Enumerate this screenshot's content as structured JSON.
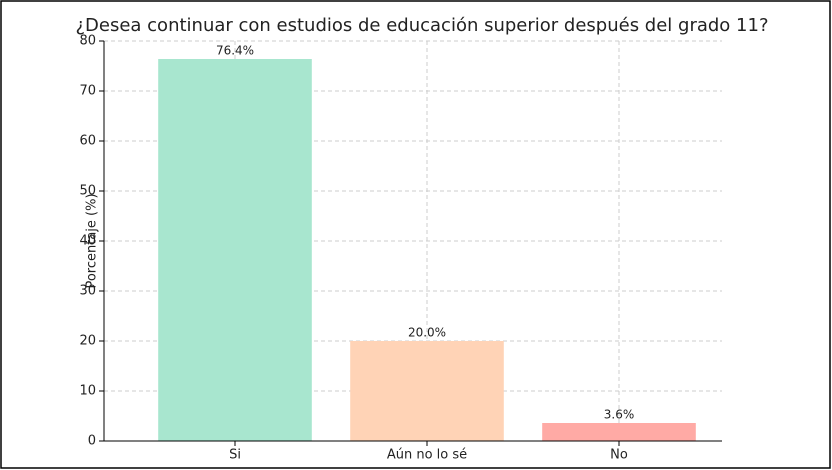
{
  "chart_data": {
    "type": "bar",
    "title": "¿Desea continuar con estudios de educación superior después del grado 11?",
    "y_label": "Porcentaje (%)",
    "categories": [
      "Si",
      "Aún no lo sé",
      "No"
    ],
    "values": [
      76.4,
      20.0,
      3.6
    ],
    "value_labels": [
      "76.4%",
      "20.0%",
      "3.6%"
    ],
    "colors": [
      "#a8e6cf",
      "#ffd3b6",
      "#ffaaa5"
    ],
    "ylim": [
      0,
      80
    ],
    "yticks": [
      0,
      10,
      20,
      30,
      40,
      50,
      60,
      70,
      80
    ],
    "grid": true
  }
}
